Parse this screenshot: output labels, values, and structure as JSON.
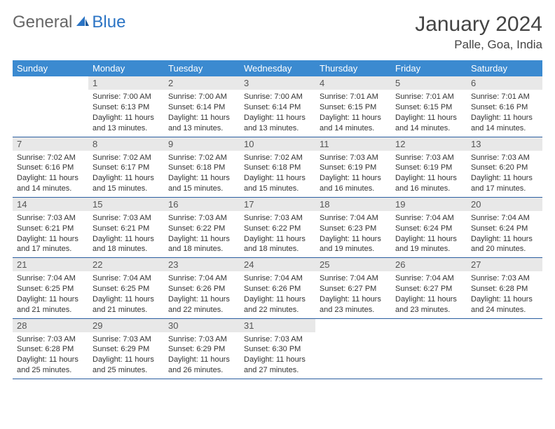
{
  "logo": {
    "word1": "General",
    "word2": "Blue"
  },
  "title": "January 2024",
  "location": "Palle, Goa, India",
  "colors": {
    "header_bg": "#3b8ad0",
    "header_text": "#ffffff",
    "daynum_bg": "#e8e8e8",
    "daynum_text": "#555555",
    "row_border": "#2b5ea0",
    "logo_blue": "#2b74c4",
    "logo_gray": "#666666",
    "body_text": "#333333"
  },
  "weekdays": [
    "Sunday",
    "Monday",
    "Tuesday",
    "Wednesday",
    "Thursday",
    "Friday",
    "Saturday"
  ],
  "weeks": [
    [
      null,
      {
        "n": "1",
        "sr": "Sunrise: 7:00 AM",
        "ss": "Sunset: 6:13 PM",
        "dl": "Daylight: 11 hours and 13 minutes."
      },
      {
        "n": "2",
        "sr": "Sunrise: 7:00 AM",
        "ss": "Sunset: 6:14 PM",
        "dl": "Daylight: 11 hours and 13 minutes."
      },
      {
        "n": "3",
        "sr": "Sunrise: 7:00 AM",
        "ss": "Sunset: 6:14 PM",
        "dl": "Daylight: 11 hours and 13 minutes."
      },
      {
        "n": "4",
        "sr": "Sunrise: 7:01 AM",
        "ss": "Sunset: 6:15 PM",
        "dl": "Daylight: 11 hours and 14 minutes."
      },
      {
        "n": "5",
        "sr": "Sunrise: 7:01 AM",
        "ss": "Sunset: 6:15 PM",
        "dl": "Daylight: 11 hours and 14 minutes."
      },
      {
        "n": "6",
        "sr": "Sunrise: 7:01 AM",
        "ss": "Sunset: 6:16 PM",
        "dl": "Daylight: 11 hours and 14 minutes."
      }
    ],
    [
      {
        "n": "7",
        "sr": "Sunrise: 7:02 AM",
        "ss": "Sunset: 6:16 PM",
        "dl": "Daylight: 11 hours and 14 minutes."
      },
      {
        "n": "8",
        "sr": "Sunrise: 7:02 AM",
        "ss": "Sunset: 6:17 PM",
        "dl": "Daylight: 11 hours and 15 minutes."
      },
      {
        "n": "9",
        "sr": "Sunrise: 7:02 AM",
        "ss": "Sunset: 6:18 PM",
        "dl": "Daylight: 11 hours and 15 minutes."
      },
      {
        "n": "10",
        "sr": "Sunrise: 7:02 AM",
        "ss": "Sunset: 6:18 PM",
        "dl": "Daylight: 11 hours and 15 minutes."
      },
      {
        "n": "11",
        "sr": "Sunrise: 7:03 AM",
        "ss": "Sunset: 6:19 PM",
        "dl": "Daylight: 11 hours and 16 minutes."
      },
      {
        "n": "12",
        "sr": "Sunrise: 7:03 AM",
        "ss": "Sunset: 6:19 PM",
        "dl": "Daylight: 11 hours and 16 minutes."
      },
      {
        "n": "13",
        "sr": "Sunrise: 7:03 AM",
        "ss": "Sunset: 6:20 PM",
        "dl": "Daylight: 11 hours and 17 minutes."
      }
    ],
    [
      {
        "n": "14",
        "sr": "Sunrise: 7:03 AM",
        "ss": "Sunset: 6:21 PM",
        "dl": "Daylight: 11 hours and 17 minutes."
      },
      {
        "n": "15",
        "sr": "Sunrise: 7:03 AM",
        "ss": "Sunset: 6:21 PM",
        "dl": "Daylight: 11 hours and 18 minutes."
      },
      {
        "n": "16",
        "sr": "Sunrise: 7:03 AM",
        "ss": "Sunset: 6:22 PM",
        "dl": "Daylight: 11 hours and 18 minutes."
      },
      {
        "n": "17",
        "sr": "Sunrise: 7:03 AM",
        "ss": "Sunset: 6:22 PM",
        "dl": "Daylight: 11 hours and 18 minutes."
      },
      {
        "n": "18",
        "sr": "Sunrise: 7:04 AM",
        "ss": "Sunset: 6:23 PM",
        "dl": "Daylight: 11 hours and 19 minutes."
      },
      {
        "n": "19",
        "sr": "Sunrise: 7:04 AM",
        "ss": "Sunset: 6:24 PM",
        "dl": "Daylight: 11 hours and 19 minutes."
      },
      {
        "n": "20",
        "sr": "Sunrise: 7:04 AM",
        "ss": "Sunset: 6:24 PM",
        "dl": "Daylight: 11 hours and 20 minutes."
      }
    ],
    [
      {
        "n": "21",
        "sr": "Sunrise: 7:04 AM",
        "ss": "Sunset: 6:25 PM",
        "dl": "Daylight: 11 hours and 21 minutes."
      },
      {
        "n": "22",
        "sr": "Sunrise: 7:04 AM",
        "ss": "Sunset: 6:25 PM",
        "dl": "Daylight: 11 hours and 21 minutes."
      },
      {
        "n": "23",
        "sr": "Sunrise: 7:04 AM",
        "ss": "Sunset: 6:26 PM",
        "dl": "Daylight: 11 hours and 22 minutes."
      },
      {
        "n": "24",
        "sr": "Sunrise: 7:04 AM",
        "ss": "Sunset: 6:26 PM",
        "dl": "Daylight: 11 hours and 22 minutes."
      },
      {
        "n": "25",
        "sr": "Sunrise: 7:04 AM",
        "ss": "Sunset: 6:27 PM",
        "dl": "Daylight: 11 hours and 23 minutes."
      },
      {
        "n": "26",
        "sr": "Sunrise: 7:04 AM",
        "ss": "Sunset: 6:27 PM",
        "dl": "Daylight: 11 hours and 23 minutes."
      },
      {
        "n": "27",
        "sr": "Sunrise: 7:03 AM",
        "ss": "Sunset: 6:28 PM",
        "dl": "Daylight: 11 hours and 24 minutes."
      }
    ],
    [
      {
        "n": "28",
        "sr": "Sunrise: 7:03 AM",
        "ss": "Sunset: 6:28 PM",
        "dl": "Daylight: 11 hours and 25 minutes."
      },
      {
        "n": "29",
        "sr": "Sunrise: 7:03 AM",
        "ss": "Sunset: 6:29 PM",
        "dl": "Daylight: 11 hours and 25 minutes."
      },
      {
        "n": "30",
        "sr": "Sunrise: 7:03 AM",
        "ss": "Sunset: 6:29 PM",
        "dl": "Daylight: 11 hours and 26 minutes."
      },
      {
        "n": "31",
        "sr": "Sunrise: 7:03 AM",
        "ss": "Sunset: 6:30 PM",
        "dl": "Daylight: 11 hours and 27 minutes."
      },
      null,
      null,
      null
    ]
  ]
}
